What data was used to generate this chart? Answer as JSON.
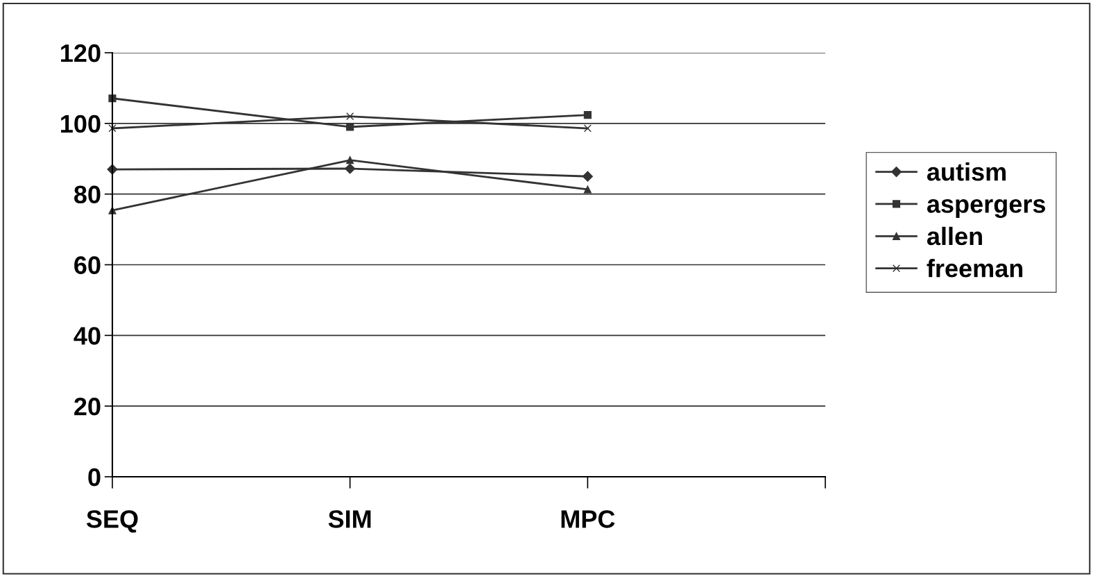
{
  "chart_data": {
    "type": "line",
    "categories": [
      "SEQ",
      "SIM",
      "MPC",
      null
    ],
    "series": [
      {
        "name": "autism",
        "color": "#333333",
        "marker": "diamond",
        "values": [
          87,
          87.2,
          85,
          null
        ]
      },
      {
        "name": "aspergers",
        "color": "#333333",
        "marker": "square",
        "values": [
          107.1,
          99,
          102.4,
          null
        ]
      },
      {
        "name": "allen",
        "color": "#333333",
        "marker": "triangle",
        "values": [
          75.4,
          89.6,
          81.3,
          null
        ]
      },
      {
        "name": "freeman",
        "color": "#333333",
        "marker": "cross",
        "values": [
          98.6,
          102,
          98.6,
          null
        ]
      }
    ],
    "ylim": [
      0,
      120
    ],
    "yticks": [
      0,
      20,
      40,
      60,
      80,
      100,
      120
    ],
    "grid": "y",
    "legend": "right",
    "line_style": "solid"
  }
}
